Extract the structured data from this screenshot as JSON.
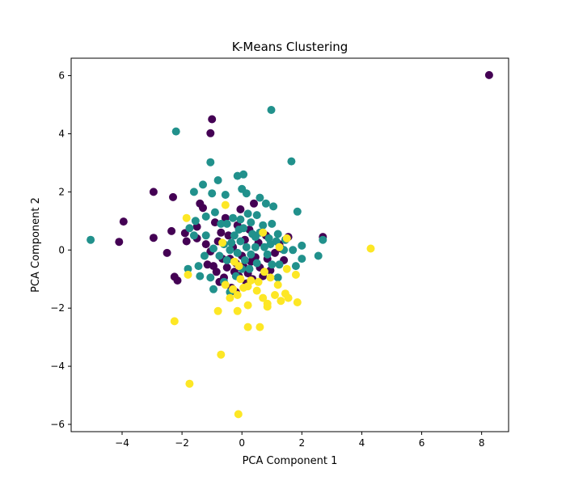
{
  "chart_data": {
    "type": "scatter",
    "title": "K-Means Clustering",
    "xlabel": "PCA Component 1",
    "ylabel": "PCA Component 2",
    "xlim": [
      -5.7,
      8.9
    ],
    "ylim": [
      -6.25,
      6.6
    ],
    "xticks": [
      -4,
      -2,
      0,
      2,
      4,
      6,
      8
    ],
    "yticks": [
      -6,
      -4,
      -2,
      0,
      2,
      4,
      6
    ],
    "grid": false,
    "series": [
      {
        "color": "#440154",
        "points": [
          [
            8.25,
            6.02
          ],
          [
            -1.0,
            4.5
          ],
          [
            -1.05,
            4.02
          ],
          [
            -2.95,
            2.0
          ],
          [
            -2.3,
            1.82
          ],
          [
            -3.95,
            0.98
          ],
          [
            -4.1,
            0.28
          ],
          [
            -2.95,
            0.42
          ],
          [
            -2.5,
            -0.1
          ],
          [
            -2.35,
            0.65
          ],
          [
            -2.25,
            -0.92
          ],
          [
            -2.15,
            -1.05
          ],
          [
            -1.9,
            0.58
          ],
          [
            -1.85,
            0.3
          ],
          [
            -1.5,
            0.8
          ],
          [
            -1.5,
            0.4
          ],
          [
            -1.4,
            1.6
          ],
          [
            -1.3,
            1.45
          ],
          [
            -1.2,
            0.2
          ],
          [
            -1.15,
            -0.5
          ],
          [
            -1.05,
            -0.05
          ],
          [
            -0.95,
            -0.55
          ],
          [
            -0.9,
            0.95
          ],
          [
            -0.85,
            -0.75
          ],
          [
            -0.8,
            0.3
          ],
          [
            -0.75,
            -1.1
          ],
          [
            -0.7,
            0.6
          ],
          [
            -0.65,
            -0.3
          ],
          [
            -0.6,
            -0.95
          ],
          [
            -0.55,
            1.1
          ],
          [
            -0.5,
            -0.6
          ],
          [
            -0.45,
            0.5
          ],
          [
            -0.4,
            -0.3
          ],
          [
            -0.35,
            -1.3
          ],
          [
            -0.3,
            0.1
          ],
          [
            -0.25,
            -0.75
          ],
          [
            -0.2,
            -0.45
          ],
          [
            -0.15,
            0.85
          ],
          [
            -0.1,
            -0.9
          ],
          [
            -0.05,
            1.4
          ],
          [
            0.0,
            -0.2
          ],
          [
            0.05,
            -0.55
          ],
          [
            0.1,
            0.35
          ],
          [
            0.15,
            -1.15
          ],
          [
            0.2,
            -0.8
          ],
          [
            0.25,
            0.7
          ],
          [
            0.3,
            -0.4
          ],
          [
            0.35,
            -1.0
          ],
          [
            0.45,
            -0.25
          ],
          [
            0.55,
            0.25
          ],
          [
            0.6,
            -0.6
          ],
          [
            0.7,
            -0.9
          ],
          [
            0.8,
            0.5
          ],
          [
            0.85,
            -0.3
          ],
          [
            0.95,
            -0.7
          ],
          [
            1.1,
            -0.1
          ],
          [
            1.25,
            0.2
          ],
          [
            1.3,
            0.05
          ],
          [
            1.4,
            -0.35
          ],
          [
            1.55,
            0.45
          ],
          [
            2.7,
            0.45
          ],
          [
            0.4,
            1.6
          ],
          [
            -0.2,
            -1.45
          ]
        ]
      },
      {
        "color": "#21918c",
        "points": [
          [
            -5.05,
            0.35
          ],
          [
            -2.2,
            4.08
          ],
          [
            0.98,
            4.82
          ],
          [
            1.65,
            3.05
          ],
          [
            -1.05,
            3.02
          ],
          [
            -0.8,
            2.4
          ],
          [
            -1.3,
            2.25
          ],
          [
            -1.6,
            2.0
          ],
          [
            -1.0,
            1.95
          ],
          [
            -0.55,
            1.9
          ],
          [
            -0.15,
            2.55
          ],
          [
            0.05,
            2.6
          ],
          [
            0.0,
            2.1
          ],
          [
            0.15,
            1.95
          ],
          [
            0.6,
            1.8
          ],
          [
            1.85,
            1.32
          ],
          [
            0.8,
            1.6
          ],
          [
            1.05,
            1.5
          ],
          [
            -1.2,
            1.15
          ],
          [
            -0.9,
            1.3
          ],
          [
            -0.5,
            0.9
          ],
          [
            -1.55,
            1.0
          ],
          [
            -1.75,
            0.75
          ],
          [
            -1.6,
            0.5
          ],
          [
            -1.2,
            0.5
          ],
          [
            -0.3,
            1.1
          ],
          [
            -0.1,
            0.7
          ],
          [
            0.2,
            1.25
          ],
          [
            0.3,
            0.95
          ],
          [
            0.5,
            1.2
          ],
          [
            0.7,
            0.85
          ],
          [
            0.9,
            0.4
          ],
          [
            1.0,
            0.9
          ],
          [
            1.2,
            0.55
          ],
          [
            1.45,
            0.35
          ],
          [
            1.7,
            0.0
          ],
          [
            2.0,
            0.15
          ],
          [
            2.0,
            -0.3
          ],
          [
            2.55,
            -0.2
          ],
          [
            2.7,
            0.35
          ],
          [
            1.8,
            -0.55
          ],
          [
            1.2,
            -0.95
          ],
          [
            1.0,
            -0.5
          ],
          [
            0.75,
            0.1
          ],
          [
            0.45,
            0.45
          ],
          [
            0.15,
            0.1
          ],
          [
            -0.05,
            0.3
          ],
          [
            -0.25,
            0.5
          ],
          [
            -0.4,
            0.0
          ],
          [
            -0.6,
            0.2
          ],
          [
            -0.75,
            -0.2
          ],
          [
            -0.95,
            0.05
          ],
          [
            -1.25,
            -0.2
          ],
          [
            -1.45,
            -0.55
          ],
          [
            -1.8,
            -0.65
          ],
          [
            -1.05,
            -0.95
          ],
          [
            -0.95,
            -1.35
          ],
          [
            -0.6,
            -1.1
          ],
          [
            -0.4,
            -1.45
          ],
          [
            -0.2,
            -0.9
          ],
          [
            0.0,
            -0.65
          ],
          [
            0.1,
            -0.35
          ],
          [
            0.3,
            -0.15
          ],
          [
            0.5,
            -0.45
          ],
          [
            0.6,
            0.6
          ],
          [
            -0.05,
            1.05
          ],
          [
            0.35,
            0.55
          ],
          [
            -0.35,
            0.25
          ],
          [
            0.25,
            -0.65
          ],
          [
            0.85,
            -0.15
          ],
          [
            1.15,
            0.3
          ],
          [
            1.4,
            0.0
          ],
          [
            -1.4,
            -0.9
          ],
          [
            -0.7,
            0.9
          ],
          [
            -0.15,
            -0.1
          ],
          [
            0.05,
            0.75
          ],
          [
            0.45,
            0.1
          ],
          [
            -0.5,
            -0.35
          ],
          [
            0.95,
            0.2
          ],
          [
            1.25,
            -0.5
          ]
        ]
      },
      {
        "color": "#fde725",
        "points": [
          [
            4.3,
            0.05
          ],
          [
            -0.12,
            -5.65
          ],
          [
            -1.75,
            -4.6
          ],
          [
            -0.7,
            -3.6
          ],
          [
            -2.25,
            -2.45
          ],
          [
            0.2,
            -2.65
          ],
          [
            0.6,
            -2.65
          ],
          [
            -0.8,
            -2.1
          ],
          [
            -0.15,
            -2.1
          ],
          [
            0.2,
            -1.9
          ],
          [
            0.85,
            -1.95
          ],
          [
            0.85,
            -1.85
          ],
          [
            0.7,
            -1.65
          ],
          [
            1.1,
            -1.55
          ],
          [
            1.3,
            -1.75
          ],
          [
            1.45,
            -1.5
          ],
          [
            1.55,
            -1.65
          ],
          [
            1.85,
            -1.8
          ],
          [
            1.8,
            -0.85
          ],
          [
            1.5,
            -0.65
          ],
          [
            1.2,
            -1.2
          ],
          [
            0.95,
            -0.95
          ],
          [
            0.55,
            -1.1
          ],
          [
            0.5,
            -1.4
          ],
          [
            0.2,
            -1.25
          ],
          [
            0.05,
            -1.3
          ],
          [
            -0.15,
            -1.55
          ],
          [
            -0.4,
            -1.65
          ],
          [
            -0.55,
            -1.2
          ],
          [
            -0.3,
            -1.35
          ],
          [
            -0.05,
            -1.0
          ],
          [
            0.3,
            -1.05
          ],
          [
            0.75,
            -0.75
          ],
          [
            1.5,
            0.4
          ],
          [
            1.25,
            0.1
          ],
          [
            0.7,
            0.6
          ],
          [
            -0.65,
            0.25
          ],
          [
            -0.55,
            1.55
          ],
          [
            -1.85,
            1.1
          ],
          [
            -1.8,
            -0.85
          ],
          [
            -0.25,
            -0.4
          ],
          [
            -0.1,
            -0.55
          ]
        ]
      }
    ]
  }
}
